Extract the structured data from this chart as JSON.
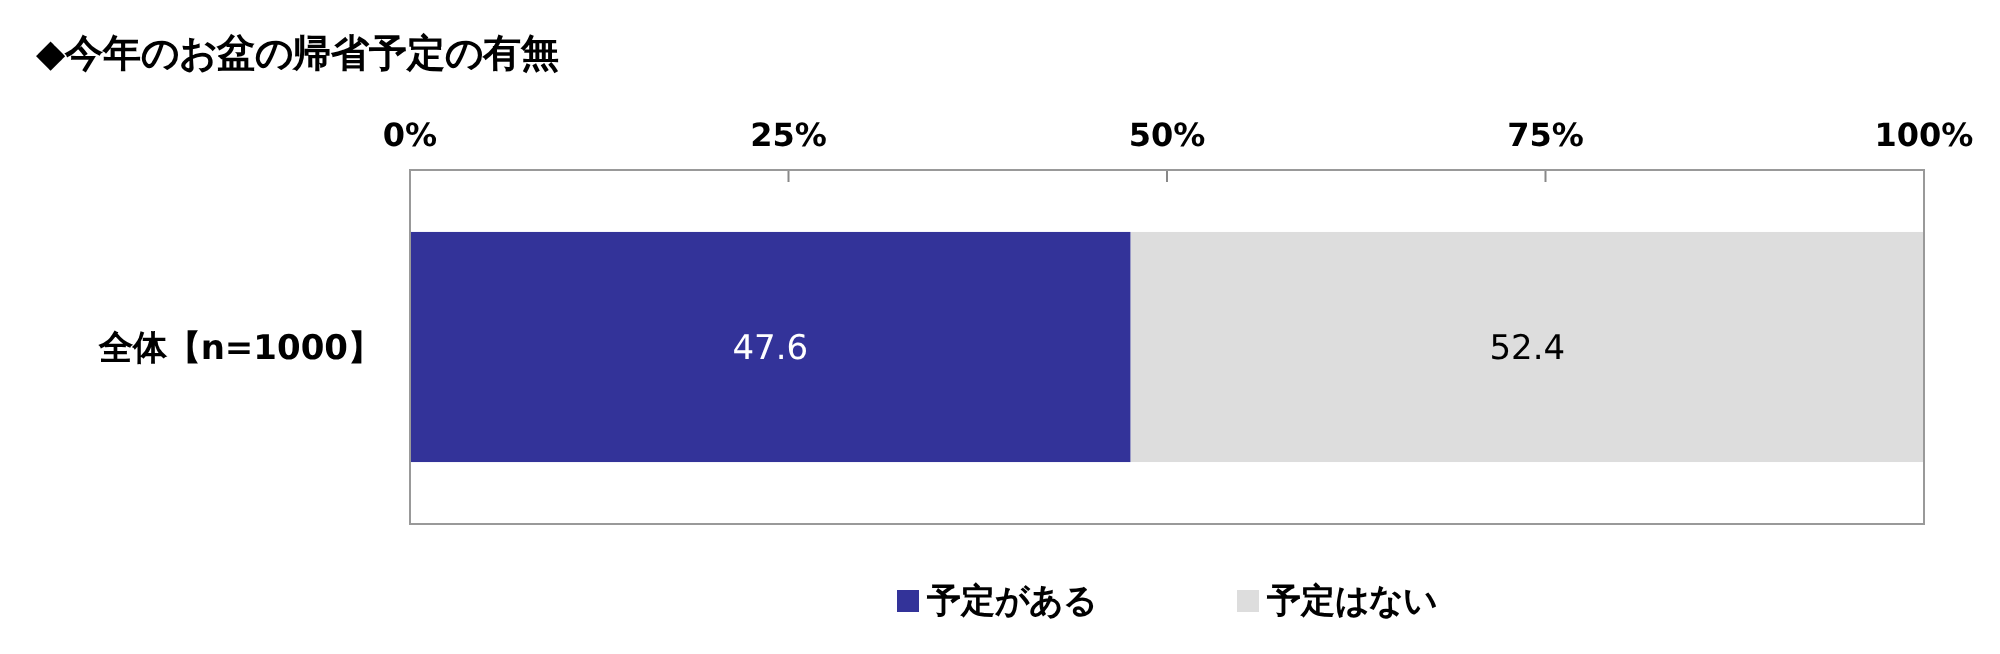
{
  "chart_data": {
    "type": "bar",
    "title": "◆今年のお盆の帰省予定の有無",
    "orientation": "horizontal",
    "stacked": true,
    "categories": [
      "全体【n=1000】"
    ],
    "series": [
      {
        "name": "予定がある",
        "color": "#333399",
        "values": [
          47.6
        ]
      },
      {
        "name": "予定はない",
        "color": "#dddddd",
        "values": [
          52.4
        ]
      }
    ],
    "xlim": [
      0,
      100
    ],
    "xticks": [
      {
        "value": 0,
        "label": "0%"
      },
      {
        "value": 25,
        "label": "25%"
      },
      {
        "value": 50,
        "label": "50%"
      },
      {
        "value": 75,
        "label": "75%"
      },
      {
        "value": 100,
        "label": "100%"
      }
    ],
    "data_labels": true,
    "legend": "bottom"
  }
}
